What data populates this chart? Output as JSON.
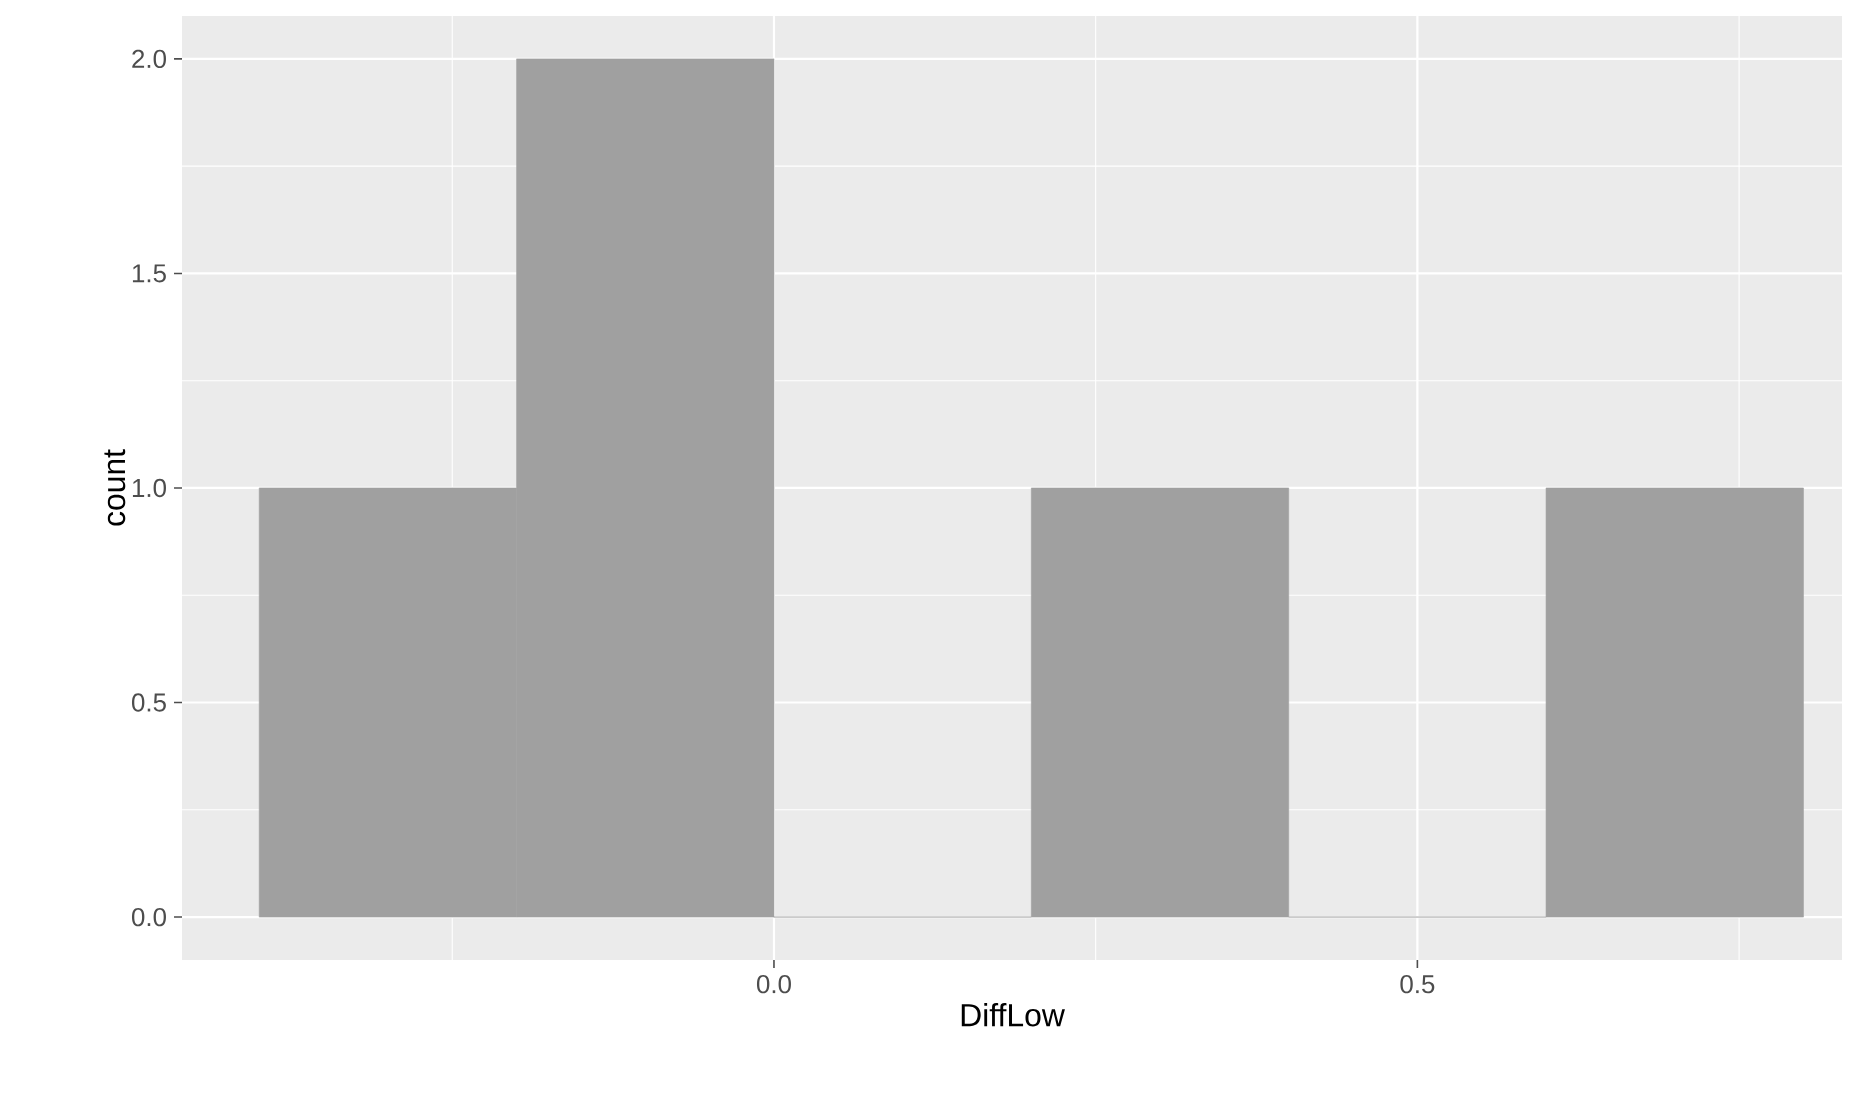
{
  "chart_data": {
    "type": "histogram",
    "xlabel": "DiffLow",
    "ylabel": "count",
    "bins": [
      -0.4,
      -0.2,
      0.0,
      0.2,
      0.4,
      0.6,
      0.8
    ],
    "values": [
      1,
      2,
      0,
      1,
      0,
      1
    ],
    "color": "#a0a0a0",
    "xlim": [
      -0.46,
      0.83
    ],
    "ylim": [
      -0.1,
      2.1
    ],
    "xticks": [
      {
        "value": 0.0,
        "label": "0.0"
      },
      {
        "value": 0.5,
        "label": "0.5"
      }
    ],
    "yticks": [
      {
        "value": 0.0,
        "label": "0.0"
      },
      {
        "value": 0.5,
        "label": "0.5"
      },
      {
        "value": 1.0,
        "label": "1.0"
      },
      {
        "value": 1.5,
        "label": "1.5"
      },
      {
        "value": 2.0,
        "label": "2.0"
      }
    ],
    "grid": true
  }
}
